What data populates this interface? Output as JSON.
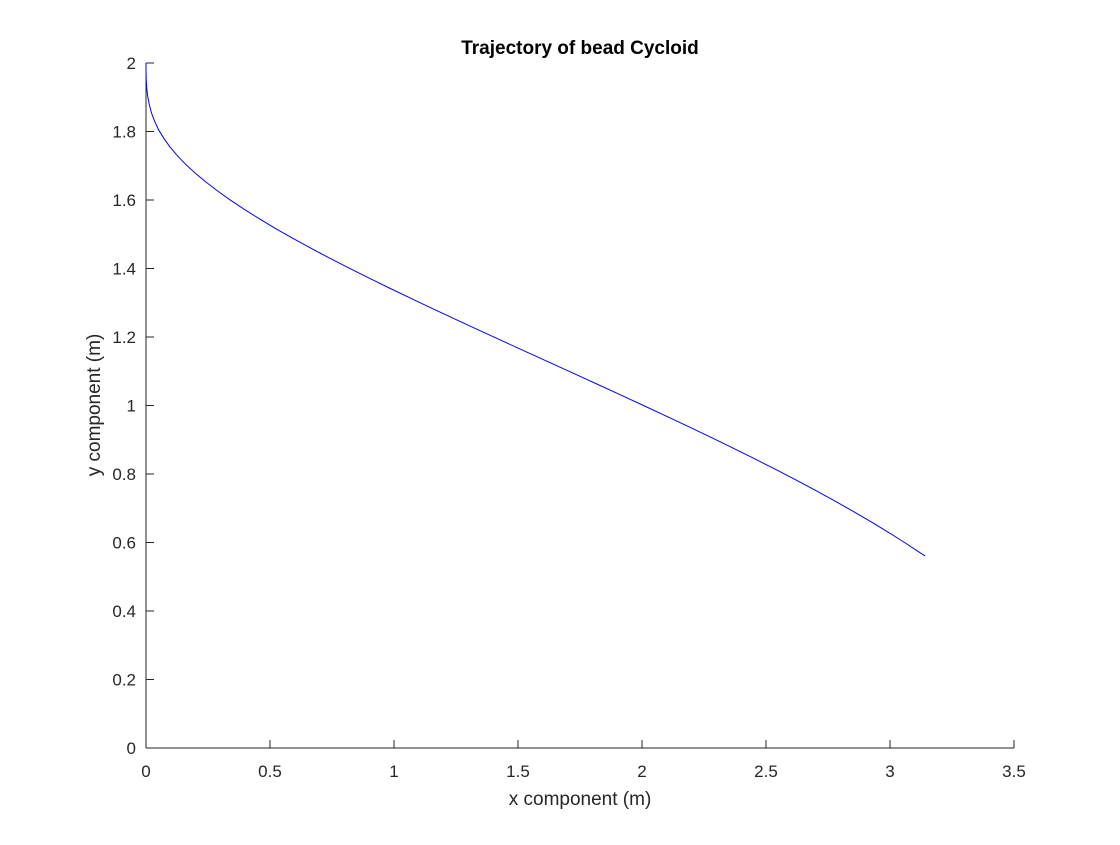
{
  "chart_data": {
    "type": "line",
    "title": "Trajectory of bead Cycloid",
    "xlabel": "x component (m)",
    "ylabel": "y component (m)",
    "xlim": [
      0,
      3.5
    ],
    "ylim": [
      0,
      2
    ],
    "xticks": [
      0,
      0.5,
      1,
      1.5,
      2,
      2.5,
      3,
      3.5
    ],
    "xtick_labels": [
      "0",
      "0.5",
      "1",
      "1.5",
      "2",
      "2.5",
      "3",
      "3.5"
    ],
    "yticks": [
      0,
      0.2,
      0.4,
      0.6,
      0.8,
      1,
      1.2,
      1.4,
      1.6,
      1.8,
      2
    ],
    "ytick_labels": [
      "0",
      "0.2",
      "0.4",
      "0.6",
      "0.8",
      "1",
      "1.2",
      "1.4",
      "1.6",
      "1.8",
      "2"
    ],
    "grid": false,
    "box": false,
    "series": [
      {
        "color": "#0000ff",
        "x": [
          0,
          0.0001,
          0.0009,
          0.003,
          0.007,
          0.0134,
          0.0226,
          0.0353,
          0.0517,
          0.0722,
          0.0969,
          0.126,
          0.1597,
          0.198,
          0.2408,
          0.2881,
          0.3399,
          0.396,
          0.4564,
          0.5208,
          0.5892,
          0.6612,
          0.7368,
          0.8156,
          0.8974,
          0.982,
          1.069,
          1.1581,
          1.249,
          1.3414,
          1.4351,
          1.5297,
          1.6249,
          1.7203,
          1.8156,
          1.9106,
          2.0049,
          2.0983,
          2.1904,
          2.281,
          2.3698,
          2.4566,
          2.5412,
          2.6234,
          2.703,
          2.7798,
          2.8537,
          2.9246,
          2.9924,
          3.0571,
          3.1185,
          3.1416
        ],
        "y": [
          2,
          1.9754,
          1.9511,
          1.9265,
          1.9019,
          1.8779,
          1.8531,
          1.8289,
          1.8038,
          1.7797,
          1.7546,
          1.7298,
          1.7042,
          1.6788,
          1.6528,
          1.6266,
          1.5999,
          1.5728,
          1.5454,
          1.5175,
          1.4893,
          1.4606,
          1.4317,
          1.4023,
          1.3727,
          1.3427,
          1.3125,
          1.2819,
          1.2512,
          1.2203,
          1.1891,
          1.1579,
          1.1265,
          1.0951,
          1.0635,
          1.032,
          1.0004,
          0.9689,
          0.9374,
          0.906,
          0.8747,
          0.8435,
          0.8125,
          0.7816,
          0.7509,
          0.7204,
          0.69,
          0.66,
          0.6302,
          0.6007,
          0.5714,
          0.5607
        ]
      }
    ]
  }
}
